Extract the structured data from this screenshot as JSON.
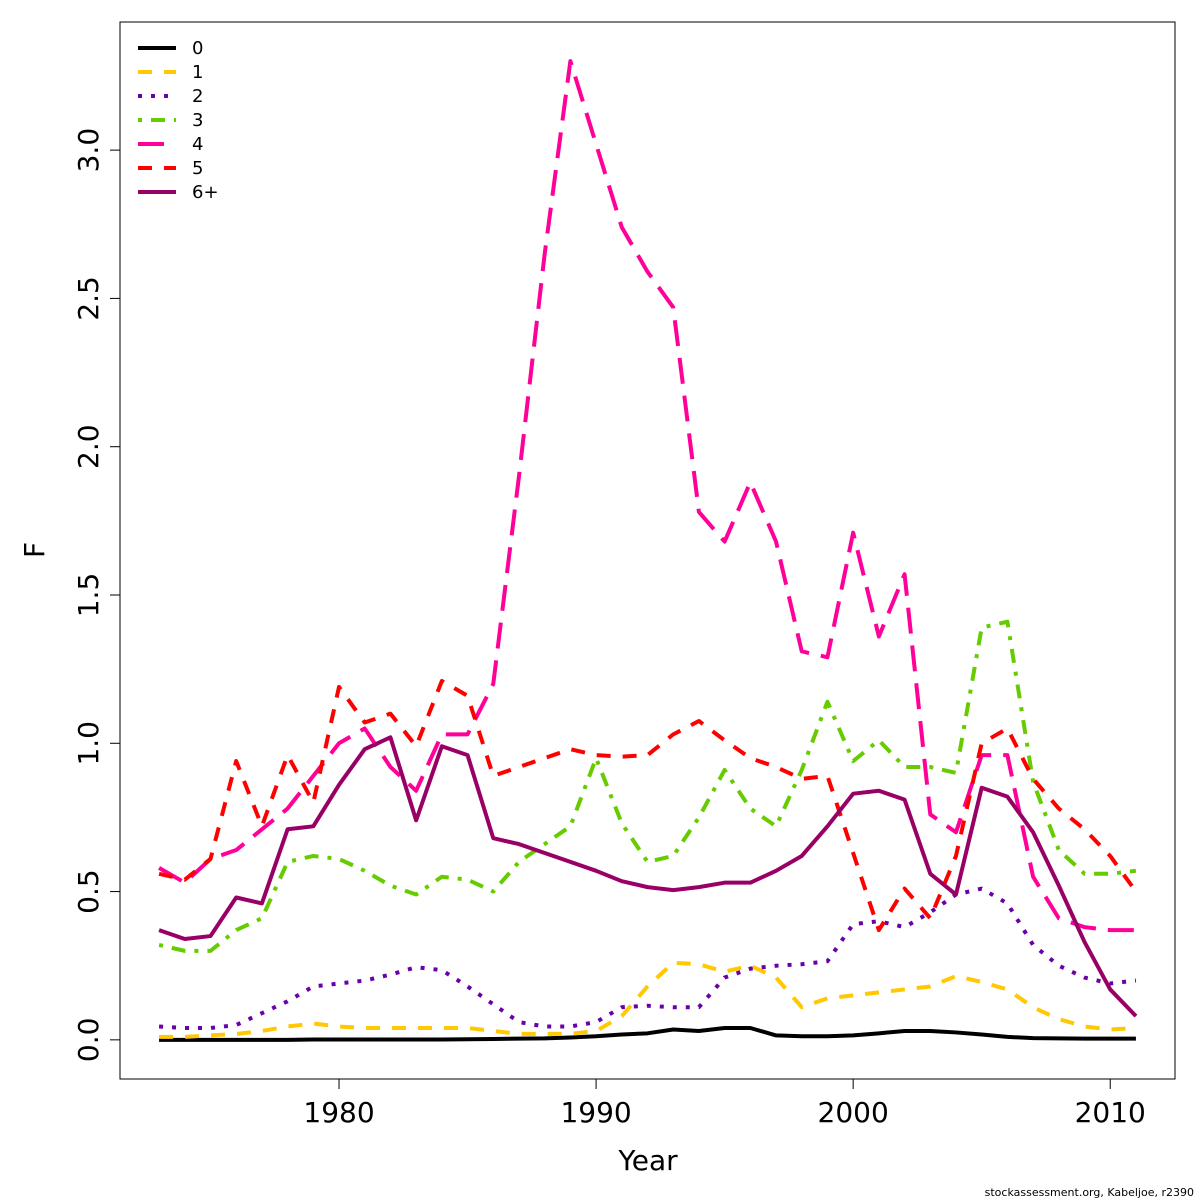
{
  "chart_data": {
    "type": "line",
    "xlabel": "Year",
    "ylabel": "F",
    "footnote": "stockassessment.org, Kabeljoe, r2390",
    "x": [
      1973,
      1974,
      1975,
      1976,
      1977,
      1978,
      1979,
      1980,
      1981,
      1982,
      1983,
      1984,
      1985,
      1986,
      1987,
      1988,
      1989,
      1990,
      1991,
      1992,
      1993,
      1994,
      1995,
      1996,
      1997,
      1998,
      1999,
      2000,
      2001,
      2002,
      2003,
      2004,
      2005,
      2006,
      2007,
      2008,
      2009,
      2010,
      2011
    ],
    "xlim": [
      1971.48,
      2012.52
    ],
    "xticks": [
      1980,
      1990,
      2000,
      2010
    ],
    "ylim": [
      -0.132,
      3.432
    ],
    "yticks": [
      {
        "value": 0,
        "label": "0.0"
      },
      0.5,
      {
        "value": 1,
        "label": "1.0"
      },
      1.5,
      {
        "value": 2,
        "label": "2.0"
      },
      2.5,
      {
        "value": 3,
        "label": "3.0"
      }
    ],
    "legend": "top-left",
    "series": [
      {
        "name": "0",
        "color": "#000000",
        "linetype": "solid",
        "values": [
          0,
          0,
          0,
          0,
          0,
          0,
          0.001,
          0.001,
          0.001,
          0.001,
          0.001,
          0.001,
          0.002,
          0.003,
          0.004,
          0.005,
          0.008,
          0.012,
          0.018,
          0.022,
          0.035,
          0.03,
          0.04,
          0.04,
          0.015,
          0.012,
          0.012,
          0.015,
          0.022,
          0.03,
          0.03,
          0.025,
          0.018,
          0.01,
          0.006,
          0.005,
          0.004,
          0.004,
          0.004
        ]
      },
      {
        "name": "1",
        "color": "#ffc800",
        "linetype": "dashed",
        "values": [
          0.01,
          0.01,
          0.015,
          0.02,
          0.03,
          0.045,
          0.055,
          0.045,
          0.04,
          0.04,
          0.04,
          0.04,
          0.04,
          0.03,
          0.02,
          0.02,
          0.02,
          0.03,
          0.08,
          0.18,
          0.26,
          0.255,
          0.23,
          0.25,
          0.21,
          0.11,
          0.14,
          0.15,
          0.16,
          0.17,
          0.18,
          0.215,
          0.195,
          0.17,
          0.11,
          0.07,
          0.045,
          0.035,
          0.04
        ]
      },
      {
        "name": "2",
        "color": "#6a00a8",
        "linetype": "dotted",
        "values": [
          0.045,
          0.04,
          0.04,
          0.05,
          0.09,
          0.13,
          0.18,
          0.19,
          0.2,
          0.22,
          0.245,
          0.235,
          0.18,
          0.12,
          0.06,
          0.045,
          0.045,
          0.06,
          0.11,
          0.115,
          0.11,
          0.11,
          0.21,
          0.24,
          0.25,
          0.255,
          0.265,
          0.39,
          0.4,
          0.38,
          0.43,
          0.49,
          0.51,
          0.46,
          0.32,
          0.25,
          0.21,
          0.19,
          0.2
        ]
      },
      {
        "name": "3",
        "color": "#66cc00",
        "linetype": "dotdash",
        "values": [
          0.32,
          0.3,
          0.3,
          0.37,
          0.41,
          0.6,
          0.62,
          0.61,
          0.57,
          0.52,
          0.49,
          0.55,
          0.54,
          0.5,
          0.6,
          0.66,
          0.72,
          0.95,
          0.73,
          0.6,
          0.62,
          0.75,
          0.91,
          0.78,
          0.72,
          0.91,
          1.14,
          0.94,
          1.01,
          0.92,
          0.92,
          0.9,
          1.39,
          1.41,
          0.87,
          0.64,
          0.56,
          0.56,
          0.57
        ]
      },
      {
        "name": "4",
        "color": "#ff0099",
        "linetype": "longdash",
        "values": [
          0.58,
          0.53,
          0.61,
          0.64,
          0.71,
          0.78,
          0.89,
          1.0,
          1.05,
          0.92,
          0.84,
          1.03,
          1.03,
          1.2,
          1.9,
          2.65,
          3.3,
          3.02,
          2.74,
          2.59,
          2.47,
          1.78,
          1.68,
          1.88,
          1.68,
          1.31,
          1.29,
          1.71,
          1.36,
          1.57,
          0.76,
          0.7,
          0.96,
          0.96,
          0.55,
          0.41,
          0.38,
          0.37,
          0.37
        ]
      },
      {
        "name": "5",
        "color": "#ff0000",
        "linetype": "dashed",
        "values": [
          0.56,
          0.54,
          0.61,
          0.94,
          0.72,
          0.96,
          0.8,
          1.19,
          1.07,
          1.1,
          0.99,
          1.21,
          1.16,
          0.89,
          0.92,
          0.95,
          0.98,
          0.96,
          0.955,
          0.96,
          1.03,
          1.075,
          1.01,
          0.95,
          0.92,
          0.88,
          0.89,
          0.63,
          0.37,
          0.51,
          0.41,
          0.62,
          1.0,
          1.05,
          0.88,
          0.78,
          0.71,
          0.62,
          0.5
        ]
      },
      {
        "name": "6+",
        "color": "#990066",
        "linetype": "solid",
        "values": [
          0.37,
          0.34,
          0.35,
          0.48,
          0.46,
          0.71,
          0.72,
          0.86,
          0.98,
          1.02,
          0.74,
          0.99,
          0.96,
          0.68,
          0.66,
          0.63,
          0.6,
          0.57,
          0.535,
          0.515,
          0.505,
          0.515,
          0.53,
          0.53,
          0.57,
          0.62,
          0.72,
          0.83,
          0.84,
          0.81,
          0.56,
          0.49,
          0.85,
          0.82,
          0.7,
          0.52,
          0.33,
          0.17,
          0.08
        ]
      }
    ]
  }
}
